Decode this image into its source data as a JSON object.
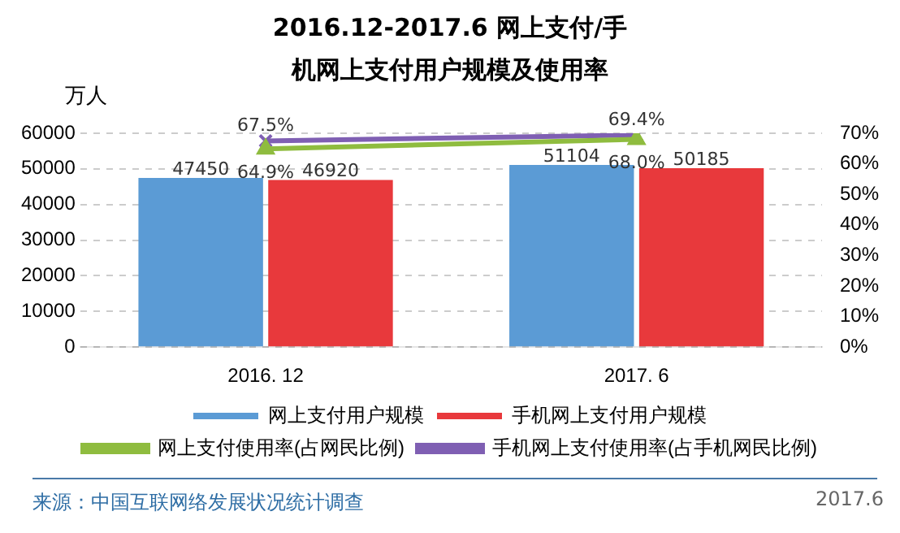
{
  "chart_data": {
    "type": "bar",
    "title": "2016.12-2017.6 网上支付/手机网上支付用户规模及使用率",
    "ylabel": "万人",
    "categories": [
      "2016. 12",
      "2017. 6"
    ],
    "series": [
      {
        "name": "网上支付用户规模",
        "color": "#5b9bd5",
        "values": [
          47450,
          51104
        ],
        "value_labels": [
          "47450",
          "51104"
        ]
      },
      {
        "name": "手机网上支付用户规模",
        "color": "#e8393c",
        "values": [
          46920,
          50185
        ],
        "value_labels": [
          "46920",
          "50185"
        ]
      },
      {
        "name": "网上支付使用率(占网民比例)",
        "type": "line",
        "axis": "y2",
        "color": "#8fbc3f",
        "marker": "triangle",
        "values": [
          64.9,
          68.0
        ],
        "value_labels": [
          "64.9%",
          "68.0%"
        ]
      },
      {
        "name": "手机网上支付使用率(占手机网民比例)",
        "type": "line",
        "axis": "y2",
        "color": "#7f5fb3",
        "marker": "cross",
        "values": [
          67.5,
          69.4
        ],
        "value_labels": [
          "67.5%",
          "69.4%"
        ]
      }
    ],
    "ylim": [
      0,
      60000
    ],
    "yticks": [
      0,
      10000,
      20000,
      30000,
      40000,
      50000,
      60000
    ],
    "y2lim": [
      0,
      70
    ],
    "y2ticks": [
      {
        "value": 0,
        "label": "0%"
      },
      {
        "value": 10,
        "label": "10%"
      },
      {
        "value": 20,
        "label": "20%"
      },
      {
        "value": 30,
        "label": "30%"
      },
      {
        "value": 40,
        "label": "40%"
      },
      {
        "value": 50,
        "label": "50%"
      },
      {
        "value": 60,
        "label": "60%"
      },
      {
        "value": 70,
        "label": "70%"
      }
    ],
    "grid": "y",
    "legend": "bottom",
    "annotations": [
      "来源：中国互联网络发展状况统计调查",
      "2017.6"
    ]
  }
}
